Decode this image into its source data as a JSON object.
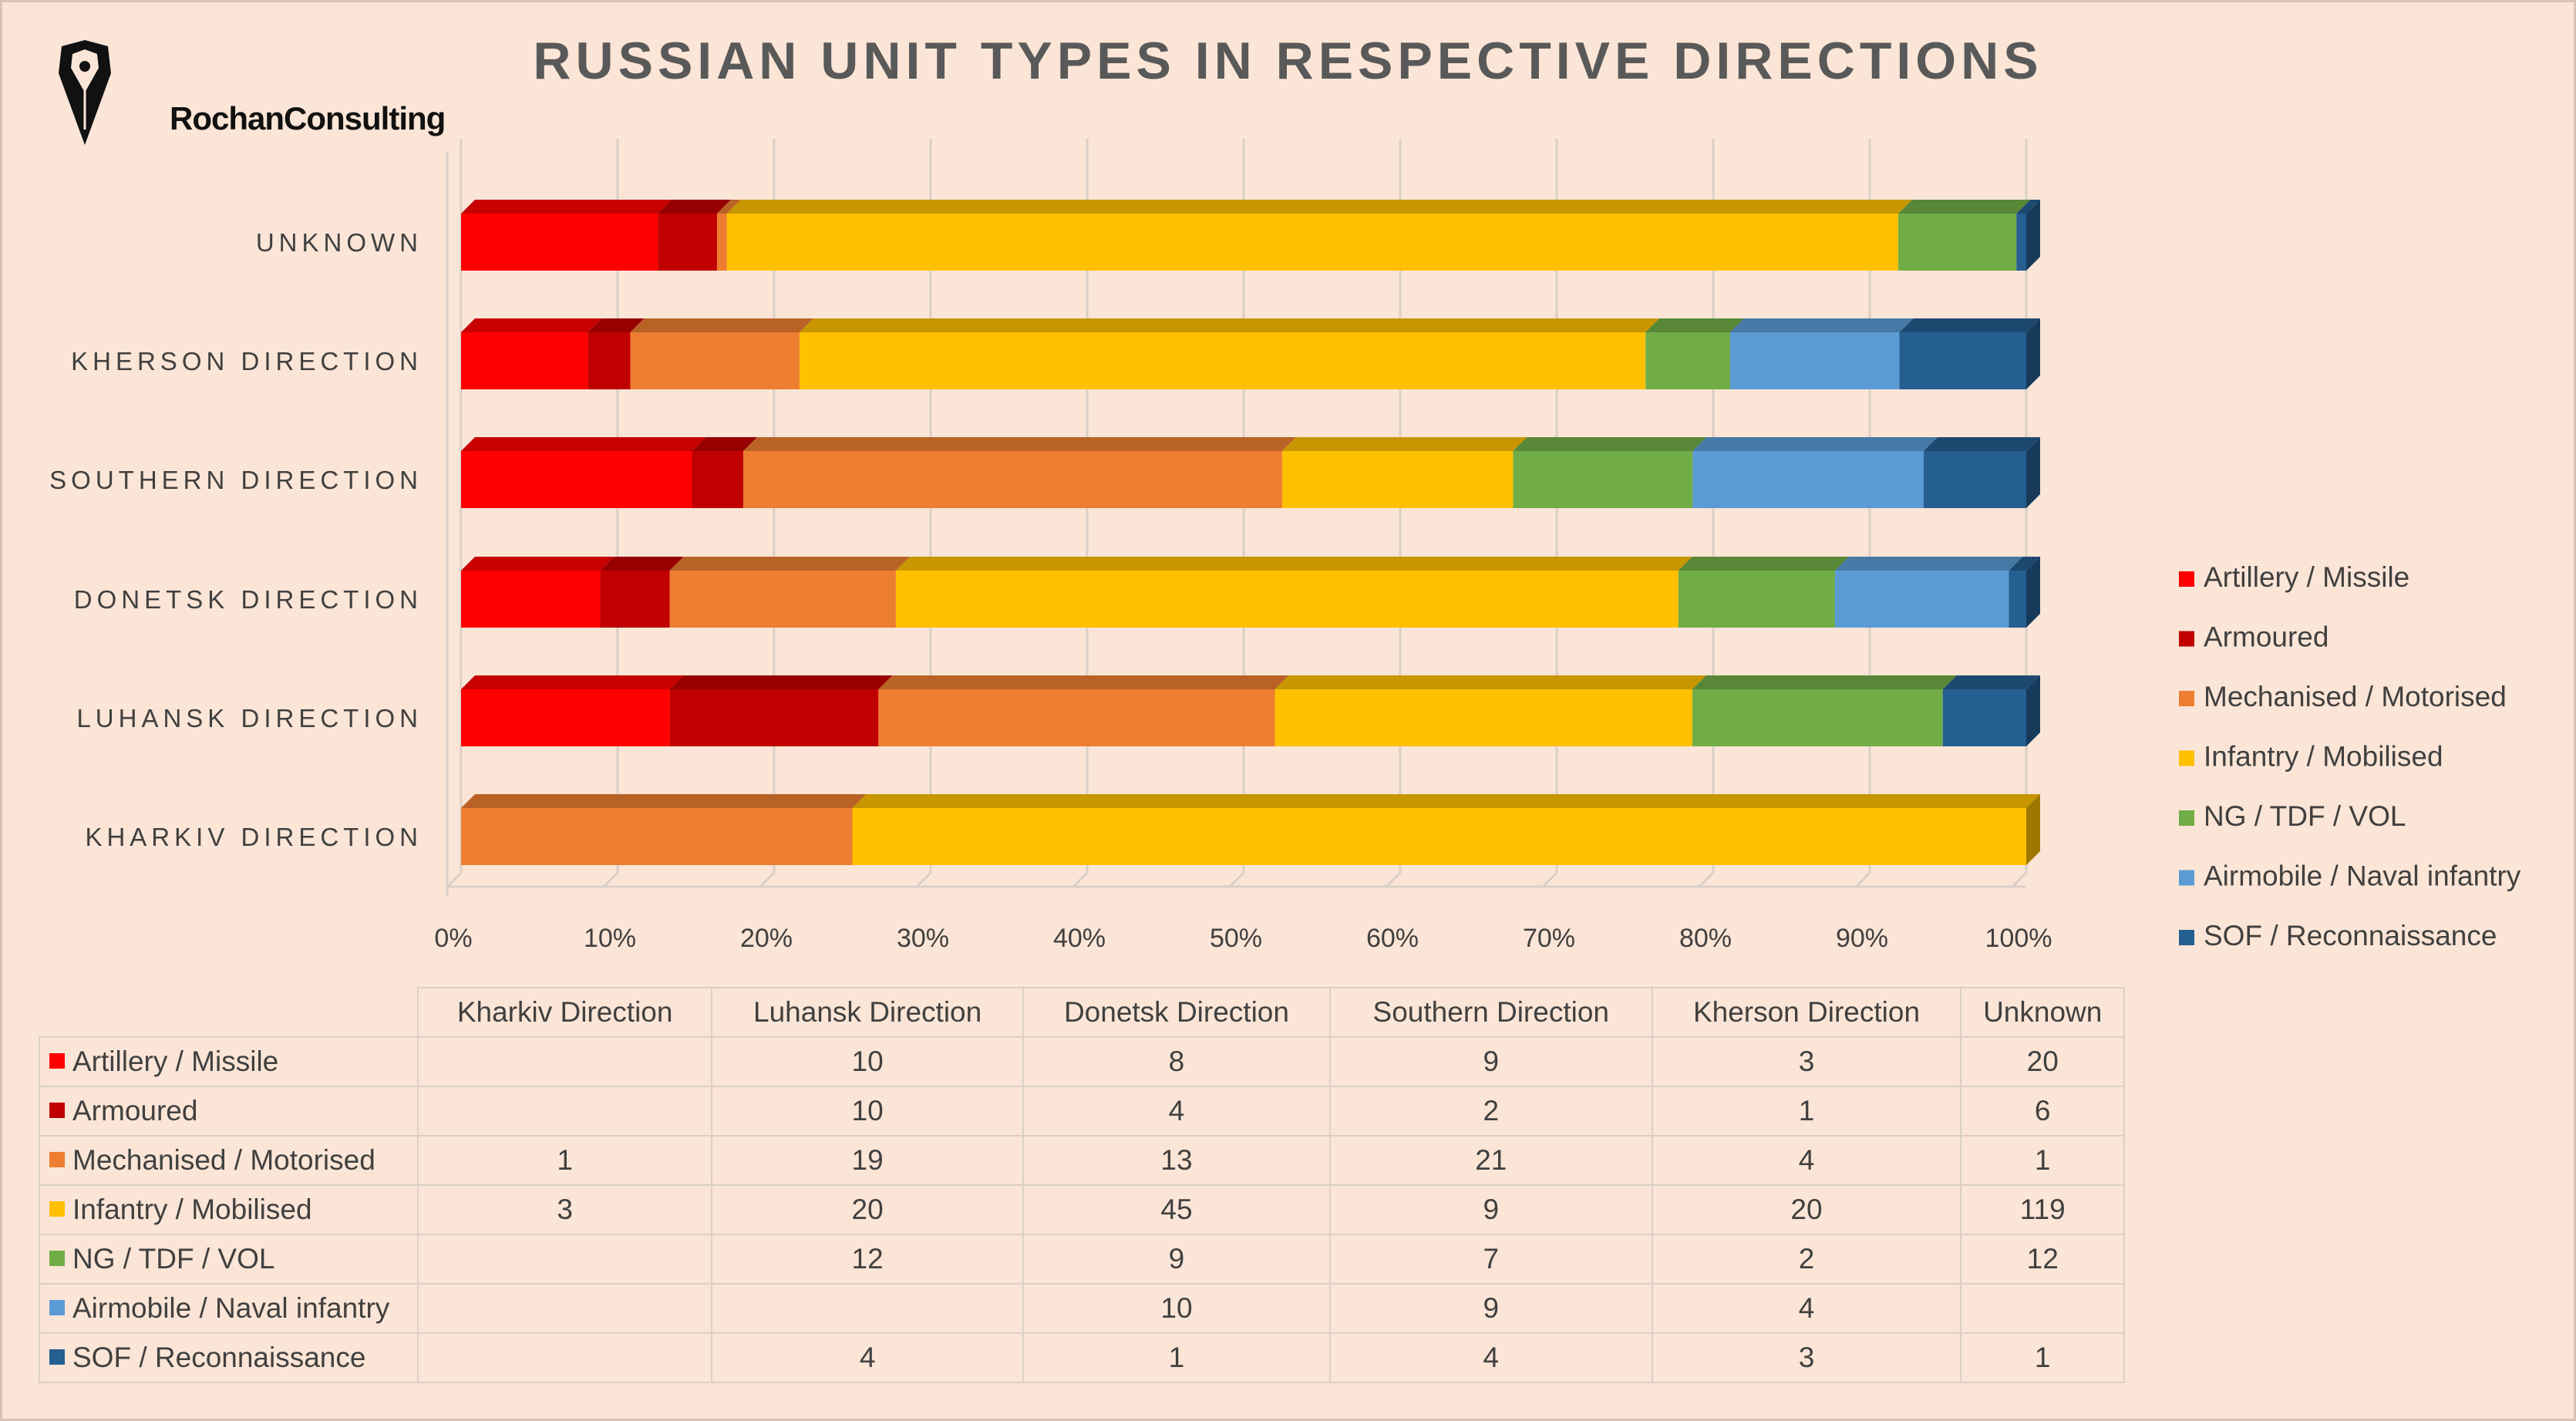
{
  "title": "RUSSIAN UNIT TYPES IN RESPECTIVE DIRECTIONS",
  "logo": {
    "text": "RochanConsulting",
    "icon": "horse-head-pen-icon"
  },
  "chart_data": {
    "type": "bar",
    "orientation": "horizontal",
    "stacked": "percent",
    "title": "RUSSIAN UNIT TYPES IN RESPECTIVE DIRECTIONS",
    "categories": [
      "Kharkiv Direction",
      "Luhansk Direction",
      "Donetsk Direction",
      "Southern Direction",
      "Kherson Direction",
      "Unknown"
    ],
    "category_labels_display": [
      "KHARKIV DIRECTION",
      "LUHANSK DIRECTION",
      "DONETSK DIRECTION",
      "SOUTHERN DIRECTION",
      "KHERSON DIRECTION",
      "UNKNOWN"
    ],
    "series": [
      {
        "name": "Artillery / Missile",
        "color": "#ff0000",
        "values": [
          null,
          10,
          8,
          9,
          3,
          20
        ]
      },
      {
        "name": "Armoured",
        "color": "#c00000",
        "values": [
          null,
          10,
          4,
          2,
          1,
          6
        ]
      },
      {
        "name": "Mechanised / Motorised",
        "color": "#ed7d31",
        "values": [
          1,
          19,
          13,
          21,
          4,
          1
        ]
      },
      {
        "name": "Infantry / Mobilised",
        "color": "#ffc000",
        "values": [
          3,
          20,
          45,
          9,
          20,
          119
        ]
      },
      {
        "name": "NG / TDF / VOL",
        "color": "#70ad47",
        "values": [
          null,
          12,
          9,
          7,
          2,
          12
        ]
      },
      {
        "name": "Airmobile / Naval infantry",
        "color": "#5b9bd5",
        "values": [
          null,
          null,
          10,
          9,
          4,
          null
        ]
      },
      {
        "name": "SOF / Reconnaissance",
        "color": "#255e91",
        "values": [
          null,
          4,
          1,
          4,
          3,
          1
        ]
      }
    ],
    "xlim": [
      0,
      100
    ],
    "x_ticks": [
      "0%",
      "10%",
      "20%",
      "30%",
      "40%",
      "50%",
      "60%",
      "70%",
      "80%",
      "90%",
      "100%"
    ],
    "grid": true,
    "legend_position": "right",
    "data_table": true
  }
}
